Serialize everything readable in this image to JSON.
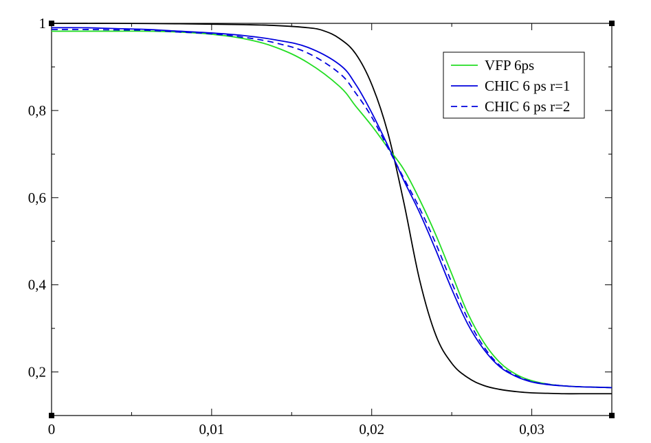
{
  "chart_data": {
    "type": "line",
    "title": "",
    "xlabel": "",
    "ylabel": "",
    "xlim": [
      0,
      0.035
    ],
    "ylim": [
      0.1,
      1.0
    ],
    "x_ticks": [
      {
        "value": 0,
        "label": "0"
      },
      {
        "value": 0.01,
        "label": "0,01"
      },
      {
        "value": 0.02,
        "label": "0,02"
      },
      {
        "value": 0.03,
        "label": "0,03"
      }
    ],
    "y_ticks": [
      {
        "value": 0.2,
        "label": "0,2"
      },
      {
        "value": 0.4,
        "label": "0,4"
      },
      {
        "value": 0.6,
        "label": "0,6"
      },
      {
        "value": 0.8,
        "label": "0,8"
      },
      {
        "value": 1.0,
        "label": "1"
      }
    ],
    "grid": false,
    "legend_position": "top-right",
    "series": [
      {
        "name": "VFP 6ps",
        "color": "#22dd22",
        "dash": "solid",
        "show_in_legend": true,
        "x": [
          0,
          0.002,
          0.004,
          0.006,
          0.008,
          0.01,
          0.012,
          0.014,
          0.016,
          0.018,
          0.019,
          0.02,
          0.021,
          0.022,
          0.023,
          0.024,
          0.025,
          0.026,
          0.027,
          0.028,
          0.029,
          0.03,
          0.031,
          0.032,
          0.033,
          0.034,
          0.035
        ],
        "y": [
          0.982,
          0.982,
          0.982,
          0.982,
          0.98,
          0.975,
          0.965,
          0.945,
          0.91,
          0.855,
          0.81,
          0.765,
          0.715,
          0.665,
          0.595,
          0.515,
          0.425,
          0.335,
          0.268,
          0.222,
          0.195,
          0.18,
          0.172,
          0.168,
          0.166,
          0.165,
          0.164
        ]
      },
      {
        "name": "CHIC 6 ps r=1",
        "color": "#0000dd",
        "dash": "solid",
        "show_in_legend": true,
        "x": [
          0,
          0.002,
          0.004,
          0.006,
          0.008,
          0.01,
          0.012,
          0.014,
          0.016,
          0.018,
          0.019,
          0.02,
          0.021,
          0.022,
          0.023,
          0.024,
          0.025,
          0.026,
          0.027,
          0.028,
          0.029,
          0.03,
          0.031,
          0.032,
          0.033,
          0.034,
          0.035
        ],
        "y": [
          0.99,
          0.99,
          0.988,
          0.986,
          0.982,
          0.978,
          0.972,
          0.962,
          0.945,
          0.905,
          0.86,
          0.795,
          0.72,
          0.64,
          0.565,
          0.48,
          0.39,
          0.31,
          0.252,
          0.212,
          0.19,
          0.177,
          0.171,
          0.168,
          0.166,
          0.165,
          0.164
        ]
      },
      {
        "name": "CHIC 6 ps r=2",
        "color": "#0000dd",
        "dash": "dashed",
        "show_in_legend": true,
        "x": [
          0,
          0.002,
          0.004,
          0.006,
          0.008,
          0.01,
          0.012,
          0.014,
          0.016,
          0.018,
          0.019,
          0.02,
          0.021,
          0.022,
          0.023,
          0.024,
          0.025,
          0.026,
          0.027,
          0.028,
          0.029,
          0.03,
          0.031,
          0.032,
          0.033,
          0.034,
          0.035
        ],
        "y": [
          0.986,
          0.986,
          0.985,
          0.984,
          0.98,
          0.976,
          0.968,
          0.955,
          0.932,
          0.885,
          0.84,
          0.785,
          0.715,
          0.645,
          0.575,
          0.495,
          0.405,
          0.322,
          0.258,
          0.215,
          0.192,
          0.178,
          0.172,
          0.168,
          0.166,
          0.165,
          0.164
        ]
      },
      {
        "name": "",
        "color": "#000000",
        "dash": "solid",
        "show_in_legend": false,
        "x": [
          0,
          0.004,
          0.008,
          0.012,
          0.014,
          0.016,
          0.017,
          0.018,
          0.019,
          0.02,
          0.021,
          0.022,
          0.023,
          0.024,
          0.025,
          0.026,
          0.027,
          0.028,
          0.029,
          0.03,
          0.031,
          0.032,
          0.033,
          0.035
        ],
        "y": [
          1.0,
          1.0,
          0.999,
          0.997,
          0.995,
          0.99,
          0.983,
          0.965,
          0.93,
          0.86,
          0.75,
          0.59,
          0.41,
          0.285,
          0.22,
          0.187,
          0.169,
          0.16,
          0.155,
          0.152,
          0.151,
          0.15,
          0.15,
          0.15
        ]
      }
    ]
  }
}
